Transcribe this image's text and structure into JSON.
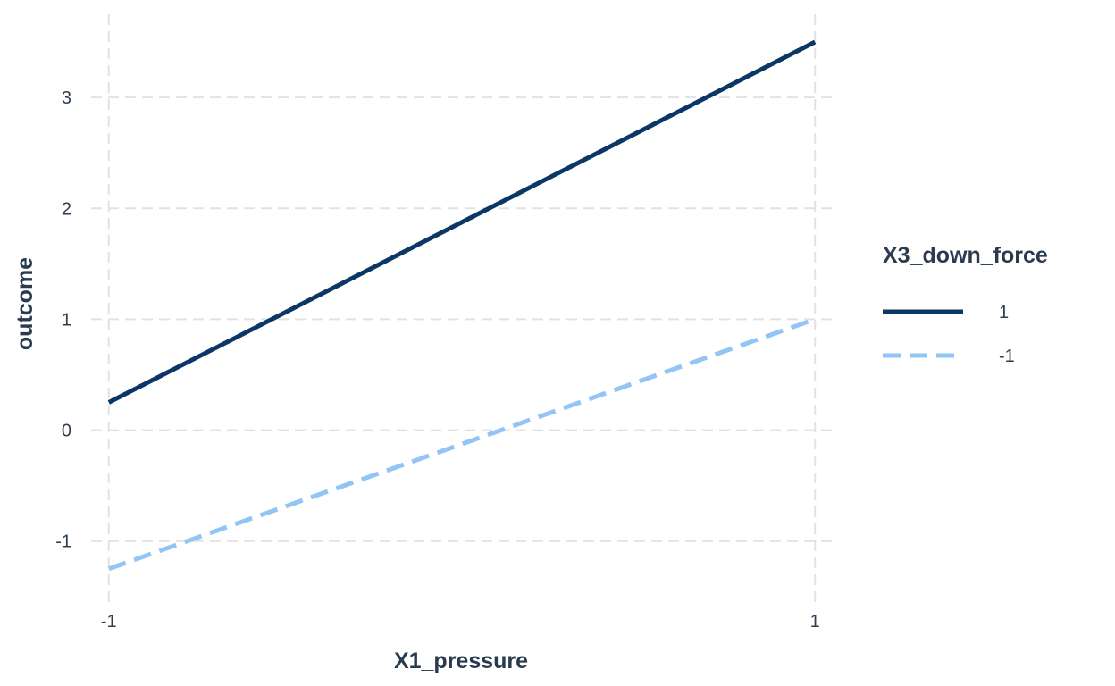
{
  "chart_data": {
    "type": "line",
    "title": "",
    "xlabel": "X1_pressure",
    "ylabel": "outcome",
    "x_ticks": [
      "-1",
      "1"
    ],
    "y_ticks": [
      "-1",
      "0",
      "1",
      "2",
      "3"
    ],
    "xlim": [
      -1.05,
      1.05
    ],
    "ylim": [
      -1.55,
      3.75
    ],
    "grid": true,
    "legend": {
      "title": "X3_down_force",
      "placement": "right"
    },
    "series": [
      {
        "name": "1",
        "x": [
          -1,
          1
        ],
        "y": [
          0.25,
          3.5
        ],
        "color": "#0b3766",
        "line_style": "solid"
      },
      {
        "name": "-1",
        "x": [
          -1,
          1
        ],
        "y": [
          -1.25,
          1.0
        ],
        "color": "#92c5f5",
        "line_style": "dashed"
      }
    ]
  }
}
